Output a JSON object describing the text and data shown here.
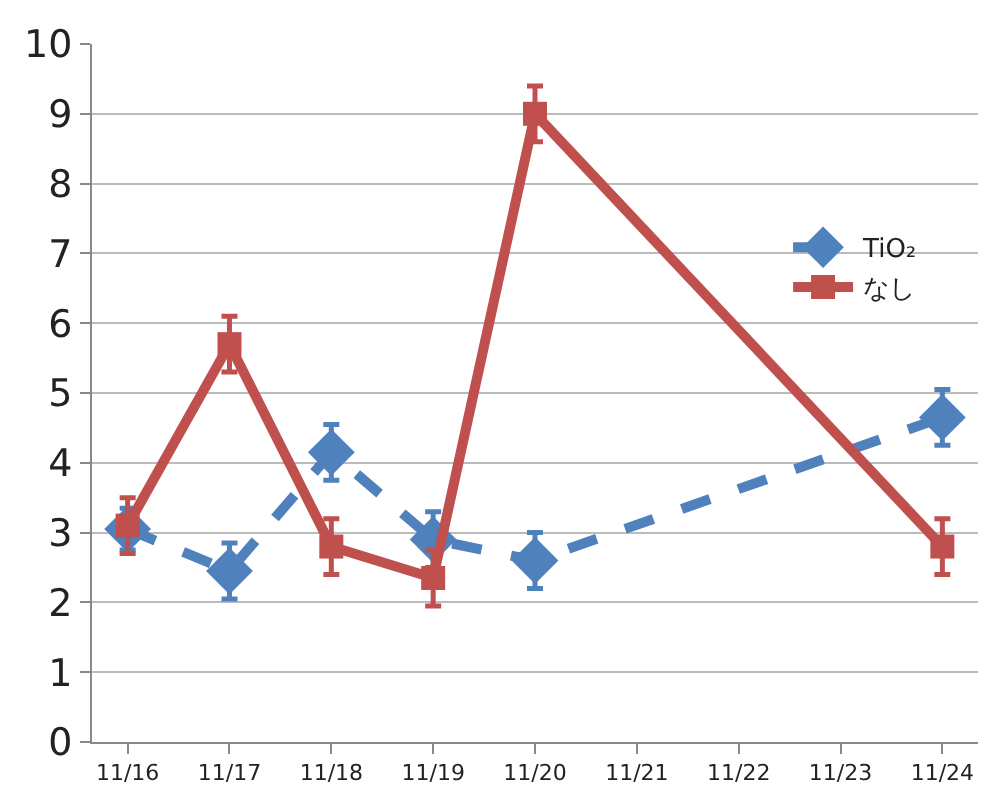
{
  "chart_data": {
    "type": "line",
    "categories": [
      "11/16",
      "11/17",
      "11/18",
      "11/19",
      "11/20",
      "11/21",
      "11/22",
      "11/23",
      "11/24"
    ],
    "series": [
      {
        "name": "TiO₂",
        "color": "#4f81bd",
        "values": [
          3.05,
          2.45,
          4.15,
          2.9,
          2.6,
          null,
          null,
          null,
          4.65
        ],
        "errors": [
          0.3,
          0.4,
          0.4,
          0.4,
          0.4,
          null,
          null,
          null,
          0.4
        ],
        "marker": "diamond",
        "line_style": "dashed"
      },
      {
        "name": "なし",
        "color": "#c0504d",
        "values": [
          3.1,
          5.7,
          2.8,
          2.35,
          9.0,
          null,
          null,
          null,
          2.8
        ],
        "errors": [
          0.4,
          0.4,
          0.4,
          0.4,
          0.4,
          null,
          null,
          null,
          0.4
        ],
        "marker": "square",
        "line_style": "solid"
      }
    ],
    "ylim": [
      0,
      10
    ],
    "yticks": [
      0,
      1,
      2,
      3,
      4,
      5,
      6,
      7,
      8,
      9,
      10
    ],
    "grid": "y",
    "legend": "right"
  }
}
